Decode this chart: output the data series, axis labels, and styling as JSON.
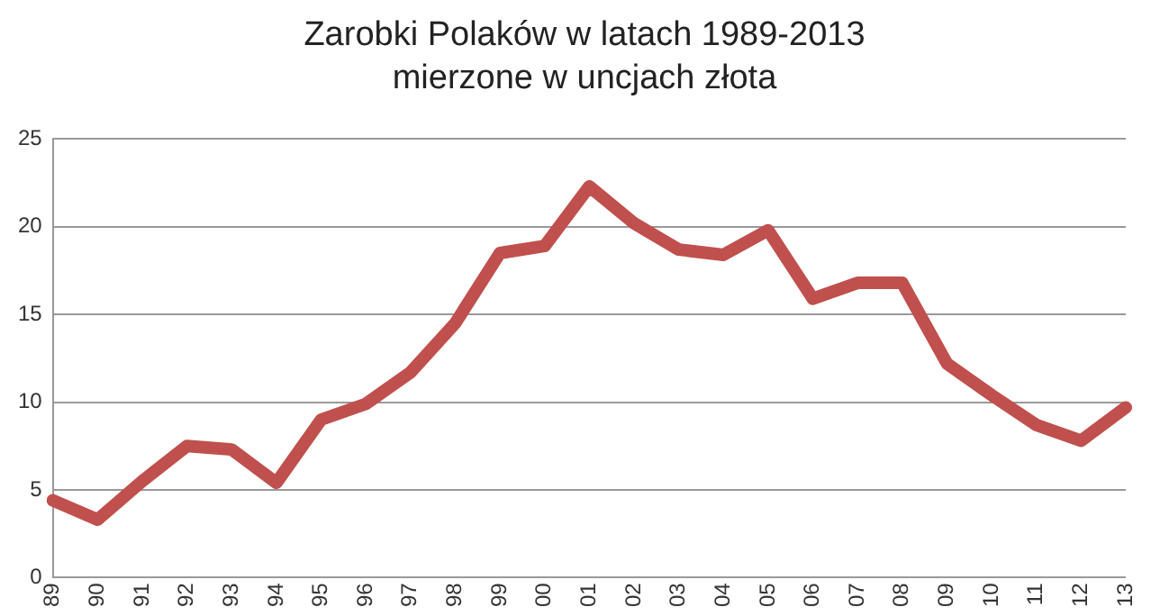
{
  "chart_data": {
    "type": "line",
    "title": "Zarobki Polaków w latach 1989-2013",
    "subtitle": "mierzone w uncjach złota",
    "categories": [
      "89",
      "90",
      "91",
      "92",
      "93",
      "94",
      "95",
      "96",
      "97",
      "98",
      "99",
      "00",
      "01",
      "02",
      "03",
      "04",
      "05",
      "06",
      "07",
      "08",
      "09",
      "10",
      "11",
      "12",
      "13"
    ],
    "series": [
      {
        "color": "#c0504d",
        "values": [
          4.4,
          3.3,
          5.5,
          7.5,
          7.3,
          5.4,
          9.0,
          9.9,
          11.7,
          14.5,
          18.5,
          18.9,
          22.3,
          20.2,
          18.7,
          18.4,
          19.8,
          15.9,
          16.8,
          16.8,
          12.2,
          10.4,
          8.7,
          7.8,
          9.7
        ]
      }
    ],
    "ylim": [
      0,
      25
    ],
    "yticks": [
      0,
      5,
      10,
      15,
      20,
      25
    ],
    "grid": "y",
    "legend": false,
    "marker": "none",
    "line_style": "solid"
  }
}
